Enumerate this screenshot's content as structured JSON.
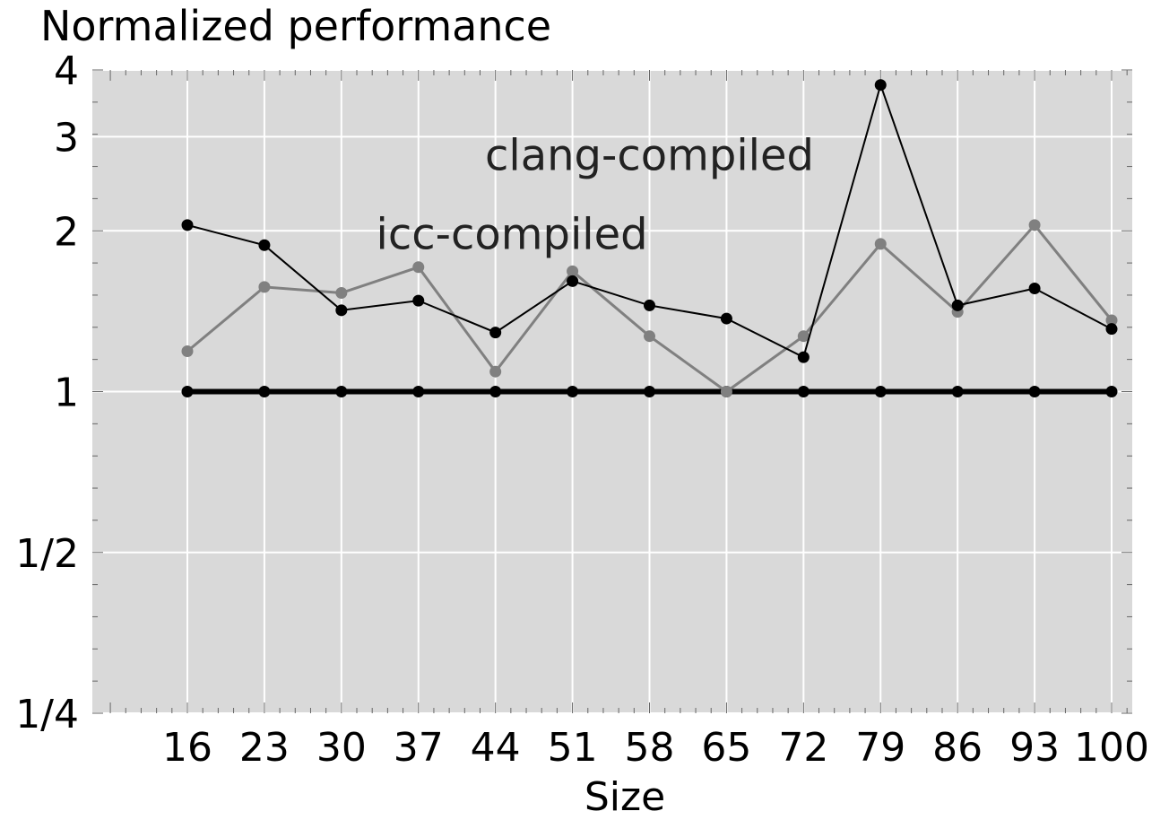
{
  "chart_data": {
    "type": "line",
    "title": "Normalized performance",
    "xlabel": "Size",
    "ylabel": "",
    "y_scale": "log2",
    "ylim": [
      0.25,
      4
    ],
    "x": [
      16,
      23,
      30,
      37,
      44,
      51,
      58,
      65,
      72,
      79,
      86,
      93,
      100
    ],
    "x_tick_labels": [
      "16",
      "23",
      "30",
      "37",
      "44",
      "51",
      "58",
      "65",
      "72",
      "79",
      "86",
      "93",
      "100"
    ],
    "y_tick_labels": [
      {
        "value": 4,
        "label": "4"
      },
      {
        "value": 3,
        "label": "3"
      },
      {
        "value": 2,
        "label": "2"
      },
      {
        "value": 1,
        "label": "1"
      },
      {
        "value": 0.5,
        "label": "1/2"
      },
      {
        "value": 0.25,
        "label": "1/4"
      }
    ],
    "grid": true,
    "background": "#d9d9d9",
    "series": [
      {
        "color": "#000000",
        "values": [
          2.05,
          1.88,
          1.42,
          1.48,
          1.29,
          1.61,
          1.45,
          1.37,
          1.16,
          3.75,
          1.45,
          1.56,
          1.31
        ]
      },
      {
        "color": "#808080",
        "values": [
          1.19,
          1.57,
          1.53,
          1.71,
          1.09,
          1.68,
          1.27,
          1.0,
          1.27,
          1.89,
          1.41,
          2.05,
          1.36
        ]
      },
      {
        "color": "#000000",
        "baseline": true,
        "values": [
          1,
          1,
          1,
          1,
          1,
          1,
          1,
          1,
          1,
          1,
          1,
          1,
          1
        ]
      }
    ],
    "annotations": [
      {
        "text": "clang-compiled",
        "x": 58,
        "y": 2.6
      },
      {
        "text": "icc-compiled",
        "x": 45.5,
        "y": 1.85
      }
    ]
  }
}
